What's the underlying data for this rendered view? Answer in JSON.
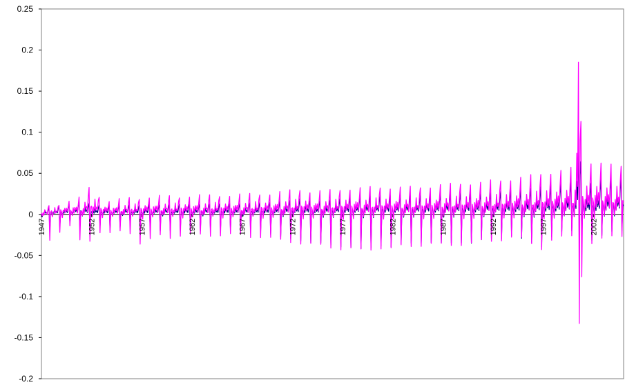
{
  "chart_data": {
    "type": "line",
    "title": "",
    "xlabel": "",
    "ylabel": "",
    "ylim": [
      -0.2,
      0.25
    ],
    "xlim": [
      1947,
      2005
    ],
    "y_ticks": [
      "0.25",
      "0.2",
      "0.15",
      "0.1",
      "0.05",
      "0",
      "-0.05",
      "-0.1",
      "-0.15",
      "-0.2"
    ],
    "x_ticks": [
      "1947",
      "1952",
      "1957",
      "1962",
      "1967",
      "1972",
      "1977",
      "1982",
      "1987",
      "1992",
      "1997",
      "2002"
    ],
    "grid": false,
    "legend": "none",
    "series": [
      {
        "color": "#000080",
        "x": [
          1947.0,
          1948.0,
          1949.0,
          1950.0,
          1951.0,
          1952.0,
          1953.0,
          1954.0,
          1955.0,
          1956.0,
          1957.0,
          1958.0,
          1959.0,
          1960.0,
          1961.0,
          1962.0,
          1963.0,
          1964.0,
          1965.0,
          1966.0,
          1967.0,
          1968.0,
          1969.0,
          1970.0,
          1971.0,
          1972.0,
          1973.0,
          1974.0,
          1975.0,
          1976.0,
          1977.0,
          1978.0,
          1979.0,
          1980.0,
          1981.0,
          1982.0,
          1983.0,
          1984.0,
          1985.0,
          1986.0,
          1987.0,
          1988.0,
          1989.0,
          1990.0,
          1991.0,
          1992.0,
          1993.0,
          1994.0,
          1995.0,
          1996.0,
          1997.0,
          1998.0,
          1999.0,
          2000.0,
          2000.5,
          2001.0,
          2001.5,
          2002.0,
          2003.0,
          2004.0
        ],
        "max": [
          0.005,
          0.01,
          0.012,
          0.015,
          0.018,
          0.014,
          0.012,
          0.012,
          0.012,
          0.013,
          0.012,
          0.014,
          0.013,
          0.013,
          0.014,
          0.014,
          0.014,
          0.014,
          0.015,
          0.015,
          0.014,
          0.016,
          0.016,
          0.016,
          0.018,
          0.019,
          0.022,
          0.018,
          0.019,
          0.02,
          0.022,
          0.024,
          0.024,
          0.025,
          0.026,
          0.025,
          0.026,
          0.025,
          0.026,
          0.027,
          0.028,
          0.028,
          0.03,
          0.03,
          0.03,
          0.03,
          0.032,
          0.033,
          0.034,
          0.035,
          0.038,
          0.04,
          0.042,
          0.045,
          0.098,
          0.045,
          0.04,
          0.045,
          0.05,
          0.05
        ],
        "min": [
          -0.03,
          -0.02,
          -0.015,
          -0.01,
          -0.02,
          -0.02,
          -0.015,
          -0.02,
          -0.015,
          -0.015,
          -0.02,
          -0.02,
          -0.02,
          -0.02,
          -0.02,
          -0.02,
          -0.02,
          -0.02,
          -0.02,
          -0.02,
          -0.02,
          -0.022,
          -0.022,
          -0.025,
          -0.028,
          -0.03,
          -0.033,
          -0.035,
          -0.035,
          -0.038,
          -0.04,
          -0.04,
          -0.042,
          -0.04,
          -0.038,
          -0.04,
          -0.035,
          -0.035,
          -0.035,
          -0.034,
          -0.035,
          -0.035,
          -0.035,
          -0.035,
          -0.03,
          -0.03,
          -0.03,
          -0.025,
          -0.03,
          -0.035,
          -0.04,
          -0.025,
          -0.02,
          -0.02,
          -0.058,
          -0.03,
          -0.035,
          -0.03,
          -0.025,
          -0.02
        ]
      },
      {
        "color": "#ff00ff",
        "x": [
          1947.0,
          1948.0,
          1949.0,
          1950.0,
          1951.0,
          1952.0,
          1953.0,
          1954.0,
          1955.0,
          1956.0,
          1957.0,
          1958.0,
          1959.0,
          1960.0,
          1961.0,
          1962.0,
          1963.0,
          1964.0,
          1965.0,
          1966.0,
          1967.0,
          1968.0,
          1969.0,
          1970.0,
          1971.0,
          1972.0,
          1973.0,
          1974.0,
          1975.0,
          1976.0,
          1977.0,
          1978.0,
          1979.0,
          1980.0,
          1981.0,
          1982.0,
          1983.0,
          1984.0,
          1985.0,
          1986.0,
          1987.0,
          1988.0,
          1989.0,
          1990.0,
          1991.0,
          1992.0,
          1993.0,
          1994.0,
          1995.0,
          1996.0,
          1997.0,
          1998.0,
          1999.0,
          2000.0,
          2000.5,
          2001.0,
          2001.5,
          2002.0,
          2003.0,
          2004.0
        ],
        "max": [
          0.008,
          0.012,
          0.015,
          0.02,
          0.022,
          0.04,
          0.02,
          0.018,
          0.02,
          0.022,
          0.022,
          0.024,
          0.024,
          0.024,
          0.024,
          0.025,
          0.025,
          0.025,
          0.026,
          0.026,
          0.026,
          0.027,
          0.028,
          0.028,
          0.03,
          0.032,
          0.034,
          0.03,
          0.031,
          0.032,
          0.034,
          0.035,
          0.035,
          0.036,
          0.037,
          0.036,
          0.036,
          0.036,
          0.037,
          0.038,
          0.04,
          0.04,
          0.042,
          0.042,
          0.043,
          0.045,
          0.046,
          0.048,
          0.05,
          0.052,
          0.055,
          0.057,
          0.06,
          0.062,
          0.187,
          0.065,
          0.068,
          0.073,
          0.068,
          0.065
        ],
        "min": [
          -0.038,
          -0.028,
          -0.02,
          -0.015,
          -0.035,
          -0.03,
          -0.02,
          -0.025,
          -0.02,
          -0.022,
          -0.038,
          -0.03,
          -0.025,
          -0.028,
          -0.025,
          -0.025,
          -0.025,
          -0.025,
          -0.025,
          -0.025,
          -0.025,
          -0.027,
          -0.027,
          -0.03,
          -0.032,
          -0.033,
          -0.035,
          -0.037,
          -0.038,
          -0.04,
          -0.042,
          -0.042,
          -0.044,
          -0.042,
          -0.04,
          -0.042,
          -0.038,
          -0.038,
          -0.037,
          -0.036,
          -0.037,
          -0.037,
          -0.036,
          -0.035,
          -0.032,
          -0.032,
          -0.03,
          -0.028,
          -0.03,
          -0.036,
          -0.042,
          -0.03,
          -0.028,
          -0.025,
          -0.152,
          -0.035,
          -0.038,
          -0.035,
          -0.03,
          -0.025
        ]
      }
    ]
  }
}
